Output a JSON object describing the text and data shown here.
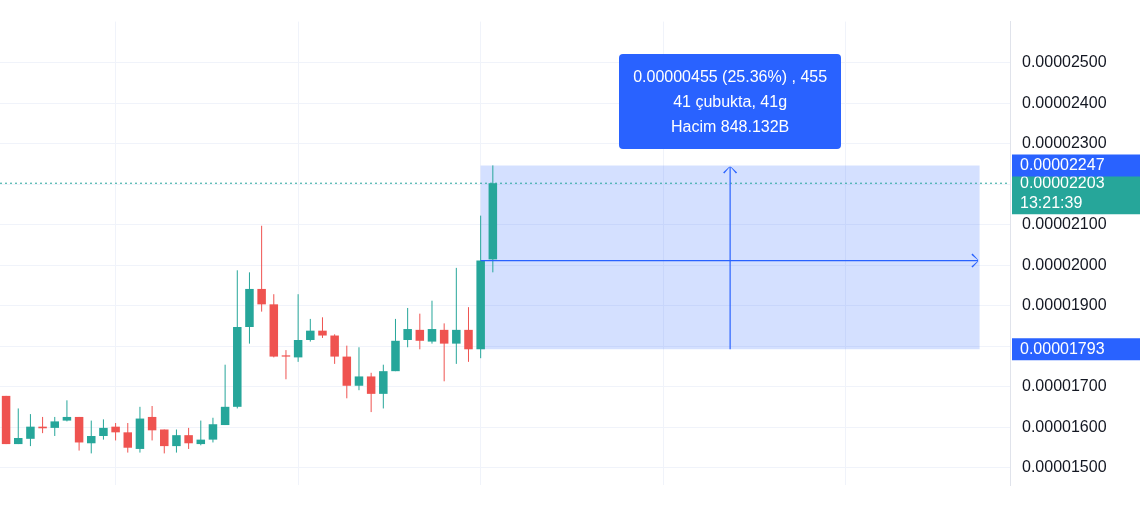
{
  "chart_data": {
    "type": "candlestick",
    "categories": [
      null,
      null,
      null,
      null,
      null,
      null,
      null,
      null,
      null,
      null,
      null,
      null,
      null,
      null,
      null,
      null,
      null,
      null,
      null,
      null,
      null,
      null,
      null,
      null,
      null,
      null,
      null,
      null,
      null,
      null,
      null,
      null,
      null,
      null,
      null,
      null,
      null,
      null,
      null,
      null,
      null,
      null,
      null,
      null,
      null,
      null,
      null,
      null,
      null,
      null,
      null,
      null,
      null,
      null,
      null,
      null,
      null,
      null,
      null,
      null,
      null,
      null,
      null,
      null,
      null,
      null,
      null,
      null,
      null,
      null,
      null,
      null,
      null,
      null,
      null,
      null,
      null,
      null,
      null,
      null,
      null,
      null,
      null
    ],
    "ohlc": [
      [
        1.678e-05,
        1.678e-05,
        1.559e-05,
        1.559e-05
      ],
      [
        1.559e-05,
        1.647e-05,
        1.559e-05,
        1.574e-05
      ],
      [
        1.572e-05,
        1.633e-05,
        1.554e-05,
        1.602e-05
      ],
      [
        1.602e-05,
        1.626e-05,
        1.586e-05,
        1.598e-05
      ],
      [
        1.599e-05,
        1.626e-05,
        1.579e-05,
        1.615e-05
      ],
      [
        1.617e-05,
        1.667e-05,
        1.615e-05,
        1.626e-05
      ],
      [
        1.626e-05,
        1.626e-05,
        1.543e-05,
        1.563e-05
      ],
      [
        1.561e-05,
        1.617e-05,
        1.536e-05,
        1.579e-05
      ],
      [
        1.579e-05,
        1.62e-05,
        1.57e-05,
        1.599e-05
      ],
      [
        1.602e-05,
        1.611e-05,
        1.568e-05,
        1.588e-05
      ],
      [
        1.588e-05,
        1.611e-05,
        1.538e-05,
        1.55e-05
      ],
      [
        1.547e-05,
        1.651e-05,
        1.538e-05,
        1.622e-05
      ],
      [
        1.626e-05,
        1.653e-05,
        1.568e-05,
        1.593e-05
      ],
      [
        1.595e-05,
        1.595e-05,
        1.536e-05,
        1.554e-05
      ],
      [
        1.554e-05,
        1.595e-05,
        1.538e-05,
        1.581e-05
      ],
      [
        1.581e-05,
        1.599e-05,
        1.547e-05,
        1.561e-05
      ],
      [
        1.559e-05,
        1.617e-05,
        1.556e-05,
        1.57e-05
      ],
      [
        1.57e-05,
        1.624e-05,
        1.563e-05,
        1.608e-05
      ],
      [
        1.606e-05,
        1.755e-05,
        1.606e-05,
        1.651e-05
      ],
      [
        1.651e-05,
        1.988e-05,
        1.647e-05,
        1.848e-05
      ],
      [
        1.848e-05,
        1.983e-05,
        1.807e-05,
        1.942e-05
      ],
      [
        1.942e-05,
        2.098e-05,
        1.886e-05,
        1.904e-05
      ],
      [
        1.904e-05,
        1.929e-05,
        1.773e-05,
        1.775e-05
      ],
      [
        1.778e-05,
        1.791e-05,
        1.719e-05,
        1.775e-05
      ],
      [
        1.773e-05,
        1.929e-05,
        1.762e-05,
        1.816e-05
      ],
      [
        1.816e-05,
        1.868e-05,
        1.812e-05,
        1.839e-05
      ],
      [
        1.839e-05,
        1.872e-05,
        1.821e-05,
        1.827e-05
      ],
      [
        1.827e-05,
        1.83e-05,
        1.757e-05,
        1.775e-05
      ],
      [
        1.775e-05,
        1.802e-05,
        1.672e-05,
        1.703e-05
      ],
      [
        1.703e-05,
        1.798e-05,
        1.692e-05,
        1.726e-05
      ],
      [
        1.726e-05,
        1.735e-05,
        1.638e-05,
        1.683e-05
      ],
      [
        1.683e-05,
        1.755e-05,
        1.647e-05,
        1.739e-05
      ],
      [
        1.739e-05,
        1.868e-05,
        1.739e-05,
        1.814e-05
      ],
      [
        1.816e-05,
        1.895e-05,
        1.798e-05,
        1.843e-05
      ],
      [
        1.841e-05,
        1.881e-05,
        1.793e-05,
        1.814e-05
      ],
      [
        1.812e-05,
        1.913e-05,
        1.807e-05,
        1.843e-05
      ],
      [
        1.841e-05,
        1.857e-05,
        1.714e-05,
        1.807e-05
      ],
      [
        1.807e-05,
        1.994e-05,
        1.757e-05,
        1.841e-05
      ],
      [
        1.841e-05,
        1.897e-05,
        1.762e-05,
        1.793e-05
      ],
      [
        1.793e-05,
        2.123e-05,
        1.771e-05,
        2.012e-05
      ],
      [
        2.015e-05,
        2.247e-05,
        1.983e-05,
        2.203e-05
      ],
      null,
      null,
      null,
      null,
      null,
      null,
      null,
      null,
      null,
      null,
      null,
      null,
      null,
      null,
      null,
      null,
      null,
      null,
      null,
      null,
      null,
      null,
      null,
      null,
      null,
      null,
      null,
      null,
      null,
      null,
      null,
      null,
      null,
      null,
      null,
      null,
      null,
      null,
      null,
      null,
      null,
      null
    ],
    "colors": [
      "#ef5350",
      "#26a69a",
      "#26a69a",
      "#ef5350",
      "#26a69a",
      "#26a69a",
      "#ef5350",
      "#26a69a",
      "#26a69a",
      "#ef5350",
      "#ef5350",
      "#26a69a",
      "#ef5350",
      "#ef5350",
      "#26a69a",
      "#ef5350",
      "#26a69a",
      "#26a69a",
      "#26a69a",
      "#26a69a",
      "#26a69a",
      "#ef5350",
      "#ef5350",
      "#ef5350",
      "#26a69a",
      "#26a69a",
      "#ef5350",
      "#ef5350",
      "#ef5350",
      "#26a69a",
      "#ef5350",
      "#26a69a",
      "#26a69a",
      "#26a69a",
      "#ef5350",
      "#26a69a",
      "#ef5350",
      "#26a69a",
      "#ef5350",
      "#26a69a",
      "#26a69a",
      null,
      null,
      null,
      null,
      null,
      null,
      null,
      null,
      null,
      null,
      null,
      null,
      null,
      null,
      null,
      null,
      null,
      null,
      null,
      null,
      null,
      null,
      null,
      null,
      null,
      null,
      null,
      null,
      null,
      null,
      null,
      null,
      null,
      null,
      null,
      null,
      null,
      null,
      null,
      null,
      null,
      null
    ],
    "ylim": [
      1.457e-05,
      2.602e-05
    ],
    "yticks": [
      {
        "value": 1.5e-05,
        "label": "0.00001500"
      },
      {
        "value": 1.6e-05,
        "label": "0.00001600"
      },
      {
        "value": 1.7e-05,
        "label": "0.00001700"
      },
      {
        "value": 1.8e-05,
        "label": null
      },
      {
        "value": 1.9e-05,
        "label": "0.00001900"
      },
      {
        "value": 2e-05,
        "label": "0.00002000"
      },
      {
        "value": 2.1e-05,
        "label": "0.00002100"
      },
      {
        "value": 2.2e-05,
        "label": null
      },
      {
        "value": 2.3e-05,
        "label": "0.00002300"
      },
      {
        "value": 2.4e-05,
        "label": "0.00002400"
      },
      {
        "value": 2.5e-05,
        "label": "0.00002500"
      }
    ],
    "tick_labels": "y",
    "grid": true,
    "ref_lines": [
      {
        "axis": "y",
        "value": 2.203e-05,
        "label": "0.00002203\n13:21:39",
        "color": "#26a69a",
        "line_style": "dotted"
      }
    ],
    "bands": [
      {
        "axis": "y",
        "from": 1.793e-05,
        "to": 2.247e-05,
        "color": "#2962ff"
      }
    ],
    "annotations": [
      "0.00000455 (25.36%) , 455",
      "41 çubukta, 41g",
      "Hacim 848.132B",
      "0.00002247",
      "0.00001793"
    ]
  }
}
